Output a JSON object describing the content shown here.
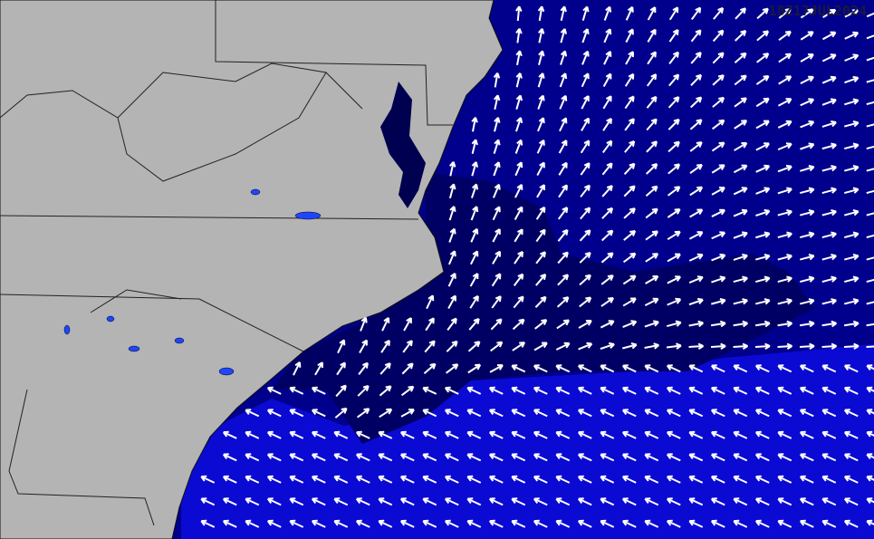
{
  "map": {
    "timestamp": "18Z17JUL2024",
    "colors": {
      "land": "#b4b4b4",
      "ocean": "#00008c",
      "calm_zone": "#000064",
      "southern_band": "#0a0ad2",
      "lakes": "#1e46ff",
      "arrows": "#ffffff",
      "borders": "#222222"
    },
    "icons": [
      "wind-arrow-icon"
    ]
  }
}
